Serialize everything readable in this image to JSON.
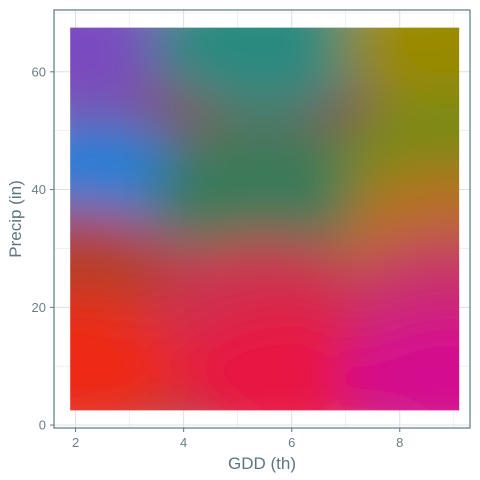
{
  "chart_data": {
    "type": "heatmap",
    "title": "",
    "xlabel": "GDD (th)",
    "ylabel": "Precip (in)",
    "xlim": [
      1.6,
      9.3
    ],
    "ylim": [
      -0.5,
      70.5
    ],
    "x_ticks": [
      2,
      4,
      6,
      8
    ],
    "y_ticks": [
      0,
      20,
      40,
      60
    ],
    "x_tick_labels": [
      "2",
      "4",
      "6",
      "8"
    ],
    "y_tick_labels": [
      "0",
      "20",
      "40",
      "60"
    ],
    "grid": true,
    "legend": "none",
    "fill_extent": {
      "x": [
        1.9,
        9.1
      ],
      "y": [
        2.5,
        67.5
      ]
    },
    "color_field": [
      {
        "x": 2,
        "y": 65,
        "color": "#7a4cc0"
      },
      {
        "x": 2.5,
        "y": 40,
        "color": "#1a7fd8"
      },
      {
        "x": 2,
        "y": 25,
        "color": "#b3402c"
      },
      {
        "x": 2,
        "y": 10,
        "color": "#ee2a12"
      },
      {
        "x": 5.5,
        "y": 65,
        "color": "#2a8a80"
      },
      {
        "x": 5.5,
        "y": 40,
        "color": "#3a7a5a"
      },
      {
        "x": 5.5,
        "y": 20,
        "color": "#cc3050"
      },
      {
        "x": 6,
        "y": 8,
        "color": "#e81242"
      },
      {
        "x": 9,
        "y": 65,
        "color": "#9a8a00"
      },
      {
        "x": 9,
        "y": 45,
        "color": "#7a8a12"
      },
      {
        "x": 9,
        "y": 32,
        "color": "#b87020"
      },
      {
        "x": 9,
        "y": 20,
        "color": "#c83268"
      },
      {
        "x": 9,
        "y": 8,
        "color": "#d40a8e"
      }
    ]
  }
}
